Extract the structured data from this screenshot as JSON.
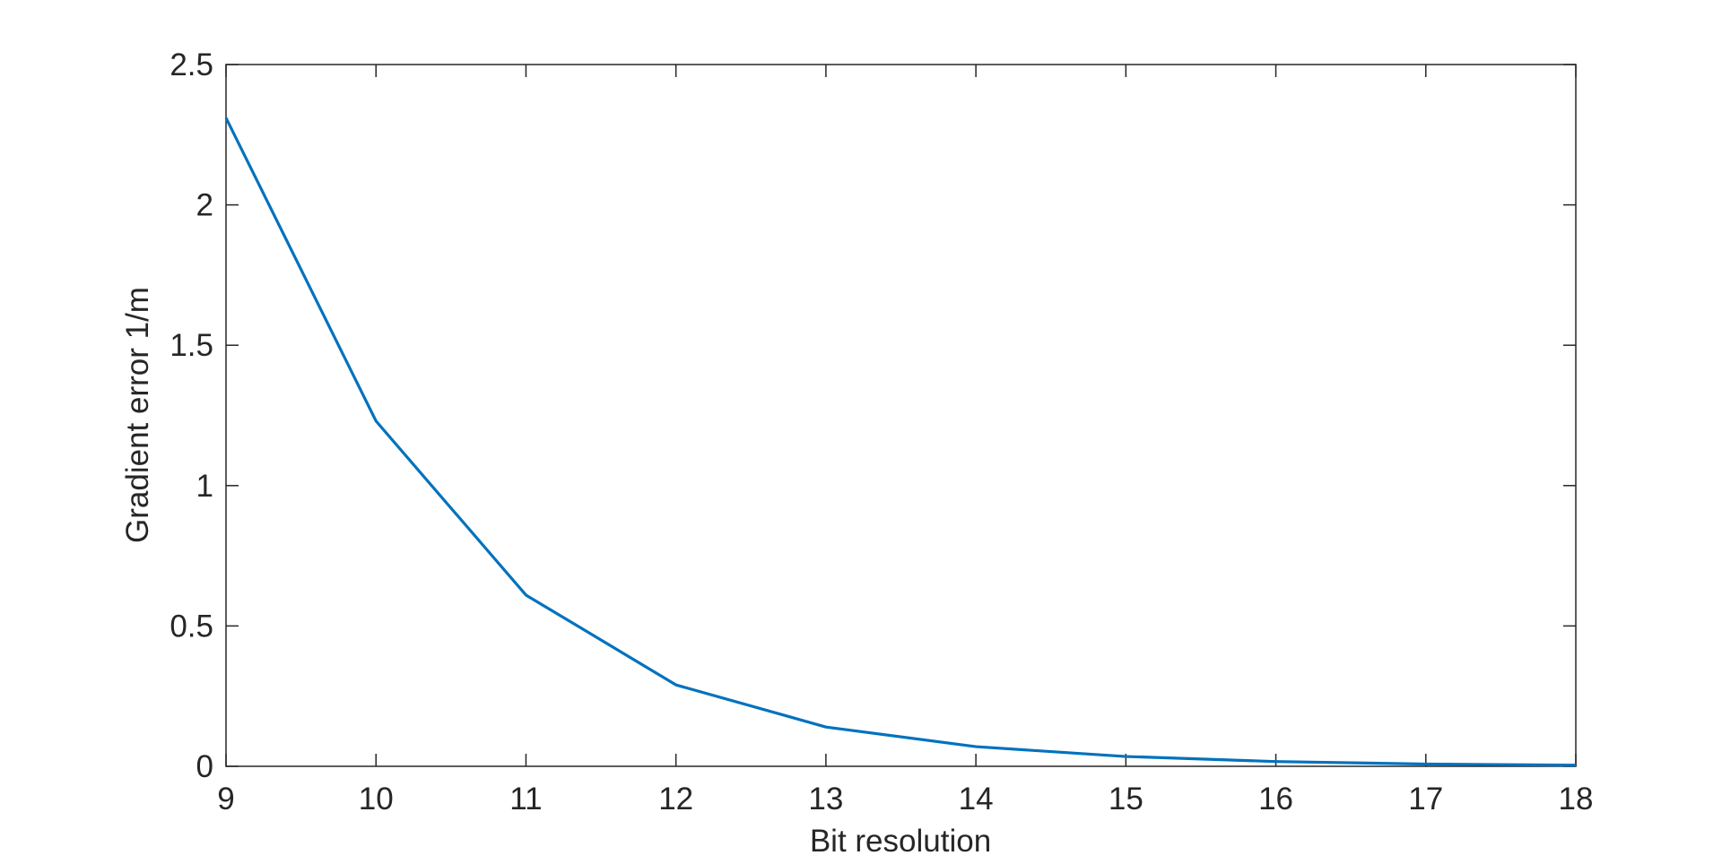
{
  "chart_data": {
    "type": "line",
    "x_label": "Bit resolution",
    "y_label": "Gradient error 1/m",
    "x": [
      9,
      10,
      11,
      12,
      13,
      14,
      15,
      16,
      17,
      18
    ],
    "series": [
      {
        "name": "Gradient error",
        "color": "#0072bd",
        "values": [
          2.31,
          1.23,
          0.61,
          0.29,
          0.14,
          0.07,
          0.035,
          0.017,
          0.008,
          0.004
        ]
      }
    ],
    "xlim": [
      9,
      18
    ],
    "xticks": [
      9,
      10,
      11,
      12,
      13,
      14,
      15,
      16,
      17,
      18
    ],
    "ylim": [
      0,
      2.5
    ],
    "yticks": [
      0,
      0.5,
      1,
      1.5,
      2,
      2.5
    ],
    "grid": false
  }
}
